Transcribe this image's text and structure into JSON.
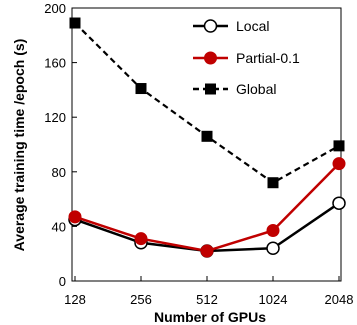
{
  "chart_data": {
    "type": "line",
    "title": "",
    "xlabel": "Number of GPUs",
    "ylabel": "Average training time /epoch (s)",
    "categories": [
      "128",
      "256",
      "512",
      "1024",
      "2048"
    ],
    "ylim": [
      0,
      200
    ],
    "yticks": [
      0,
      40,
      80,
      120,
      160,
      200
    ],
    "ytick_labels": [
      "0",
      "40",
      "80",
      "120",
      "160",
      "200"
    ],
    "grid": false,
    "legend_position": "top-right",
    "series": [
      {
        "name": "Local",
        "values": [
          45,
          28,
          22,
          24,
          57
        ],
        "color": "#000000",
        "marker": "circle-open",
        "line": "solid"
      },
      {
        "name": "Partial-0.1",
        "values": [
          47,
          31,
          22,
          37,
          86
        ],
        "color": "#c00000",
        "marker": "circle-filled",
        "line": "solid"
      },
      {
        "name": "Global",
        "values": [
          189,
          141,
          106,
          72,
          99
        ],
        "color": "#000000",
        "marker": "square-filled",
        "line": "dashed"
      }
    ]
  }
}
